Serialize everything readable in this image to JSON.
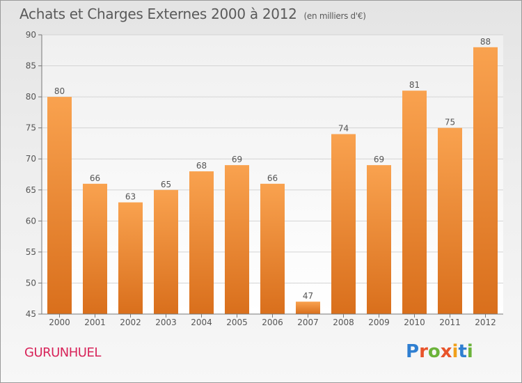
{
  "header": {
    "title": "Achats et Charges Externes 2000 à 2012",
    "unit": "(en milliers d'€)"
  },
  "footer": {
    "place": "GURUNHUEL",
    "brand": "Proxiti",
    "brand_letters": [
      {
        "ch": "P",
        "color": "#2f7fd1"
      },
      {
        "ch": "r",
        "color": "#e8542b"
      },
      {
        "ch": "o",
        "color": "#6bb33a"
      },
      {
        "ch": "x",
        "color": "#e8542b"
      },
      {
        "ch": "i",
        "color": "#f0a01c"
      },
      {
        "ch": "t",
        "color": "#2f7fd1"
      },
      {
        "ch": "i",
        "color": "#6bb33a"
      }
    ]
  },
  "chart_data": {
    "type": "bar",
    "title": "Achats et Charges Externes 2000 à 2012",
    "subtitle": "(en milliers d'€)",
    "categories": [
      "2000",
      "2001",
      "2002",
      "2003",
      "2004",
      "2005",
      "2006",
      "2007",
      "2008",
      "2009",
      "2010",
      "2011",
      "2012"
    ],
    "values": [
      80,
      66,
      63,
      65,
      68,
      69,
      66,
      47,
      74,
      69,
      81,
      75,
      88
    ],
    "ylim": [
      45,
      90
    ],
    "yticks": [
      45,
      50,
      55,
      60,
      65,
      70,
      75,
      80,
      85,
      90
    ],
    "grid": true,
    "bar_color_top": "#f9a24f",
    "bar_color_bottom": "#d96f1c"
  }
}
